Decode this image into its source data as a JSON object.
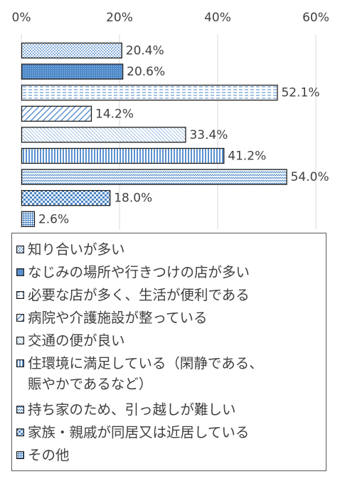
{
  "chart_data": {
    "type": "bar",
    "orientation": "horizontal",
    "x_ticks": [
      "0%",
      "20%",
      "40%",
      "60%"
    ],
    "xlim": [
      0,
      60
    ],
    "grid": true,
    "legend_position": "bottom",
    "value_suffix": "%",
    "categories": [
      "知り合いが多い",
      "なじみの場所や行きつけの店が多い",
      "必要な店が多く、生活が便利である",
      "病院や介護施設が整っている",
      "交通の便が良い",
      "住環境に満足している（閑静である、\n賑やかであるなど）",
      "持ち家のため、引っ越しが難しい",
      "家族・親戚が同居又は近居している",
      "その他"
    ],
    "values": [
      20.4,
      20.6,
      52.1,
      14.2,
      33.4,
      41.2,
      54.0,
      18.0,
      2.6
    ],
    "value_labels": [
      "20.4%",
      "20.6%",
      "52.1%",
      "14.2%",
      "33.4%",
      "41.2%",
      "54.0%",
      "18.0%",
      "2.6%"
    ],
    "patterns": [
      "dots-fine",
      "dots-blue",
      "dashes",
      "diagonal-wide",
      "diagonal-fine",
      "vertical",
      "wave",
      "checker",
      "grid"
    ],
    "colors": {
      "bar_border": "#1f1f1f",
      "pattern": "#4a86c8",
      "pattern_dark": "#2e6aa8",
      "grid": "#d9d9d9",
      "text": "#404040"
    }
  }
}
